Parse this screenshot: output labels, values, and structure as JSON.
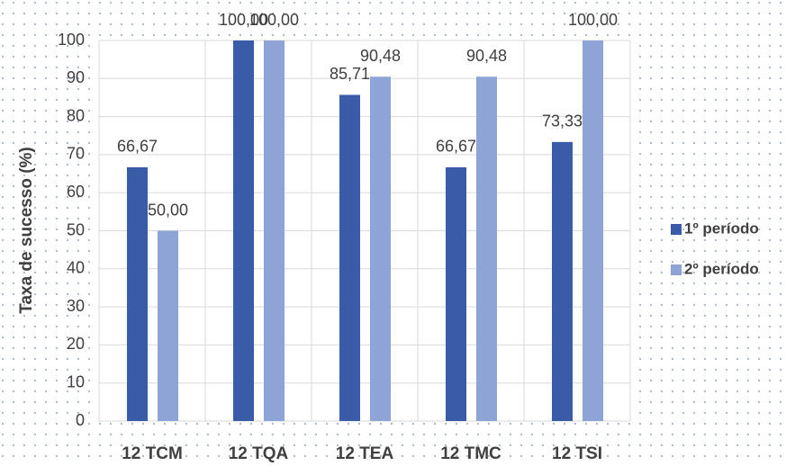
{
  "chart_data": {
    "type": "bar",
    "y_label": "Taxa de sucesso (%)",
    "categories": [
      "12 TCM",
      "12 TQA",
      "12 TEA",
      "12 TMC",
      "12 TSI"
    ],
    "series": [
      {
        "name": "1º período",
        "color": "#3a5ca8",
        "values": [
          66.67,
          100,
          85.71,
          66.67,
          73.33
        ],
        "value_labels": [
          "66,67",
          "100,00",
          "85,71",
          "66,67",
          "73,33"
        ]
      },
      {
        "name": "2º período",
        "color": "#8fa4d6",
        "values": [
          50,
          100,
          90.48,
          90.48,
          100
        ],
        "value_labels": [
          "50,00",
          "100,00",
          "90,48",
          "90,48",
          "100,00"
        ]
      }
    ],
    "ylim": [
      0,
      100
    ],
    "yticks": [
      0,
      10,
      20,
      30,
      40,
      50,
      60,
      70,
      80,
      90,
      100
    ],
    "grid": true,
    "legend": "right"
  }
}
